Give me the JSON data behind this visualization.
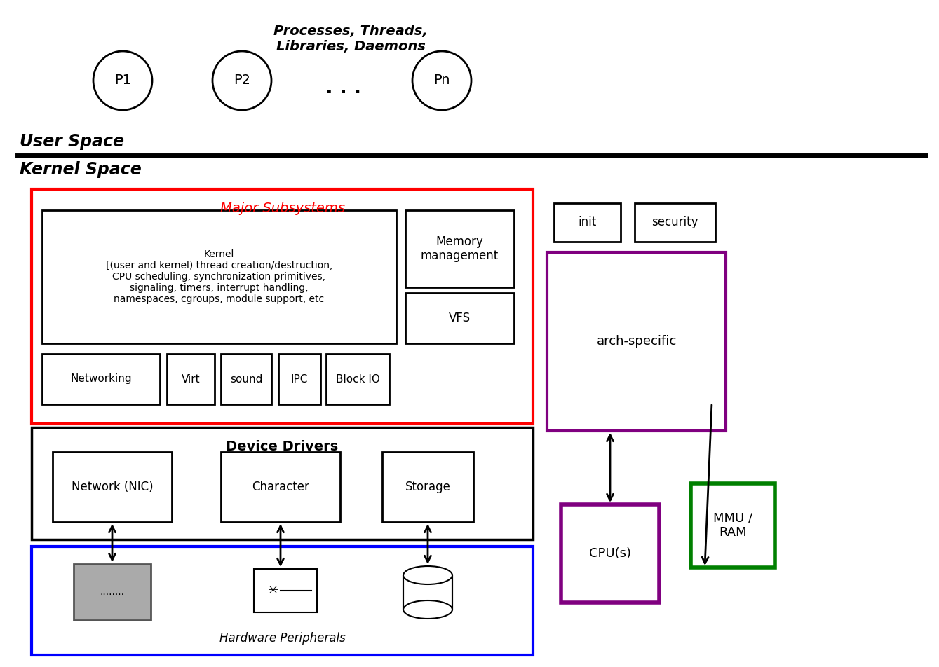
{
  "bg_color": "#ffffff",
  "fig_width": 13.39,
  "fig_height": 9.52,
  "user_space_label": "User Space",
  "kernel_space_label": "Kernel Space",
  "major_subsystems_label": "Major Subsystems",
  "processes_label": "Processes, Threads,\nLibraries, Daemons",
  "hardware_label": "Hardware Peripherals",
  "device_drivers_label": "Device Drivers",
  "arch_specific_label": "arch-specific",
  "p1_label": "P1",
  "p2_label": "P2",
  "pn_label": "Pn",
  "kernel_box_text": "Kernel\n[(user and kernel) thread creation/destruction,\nCPU scheduling, synchronization primitives,\nsignaling, timers, interrupt handling,\nnamespaces, cgroups, module support, etc",
  "memory_mgmt_text": "Memory\nmanagement",
  "vfs_text": "VFS",
  "networking_text": "Networking",
  "virt_text": "Virt",
  "sound_text": "sound",
  "ipc_text": "IPC",
  "block_io_text": "Block IO",
  "init_text": "init",
  "security_text": "security",
  "network_nic_text": "Network (NIC)",
  "character_text": "Character",
  "storage_text": "Storage",
  "cpu_text": "CPU(s)",
  "mmu_ram_text": "MMU /\nRAM",
  "dots_text": ". . ."
}
